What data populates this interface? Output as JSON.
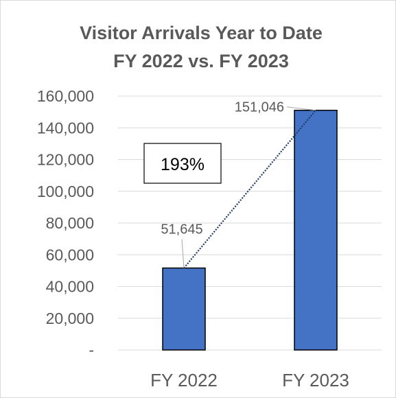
{
  "chart_data": {
    "type": "bar",
    "title": [
      "Visitor Arrivals Year to Date",
      "FY 2022 vs. FY 2023"
    ],
    "categories": [
      "FY 2022",
      "FY 2023"
    ],
    "values": [
      51645,
      151046
    ],
    "data_labels": [
      "51,645",
      "151,046"
    ],
    "y_ticks": [
      "-",
      "20,000",
      "40,000",
      "60,000",
      "80,000",
      "100,000",
      "120,000",
      "140,000",
      "160,000"
    ],
    "ylim": [
      0,
      160000
    ],
    "grid": true,
    "legend": "none",
    "trendline": "linear, dotted, connecting bar tops",
    "annotation": "193%",
    "colors": {
      "bar": "#4472c4",
      "bar_edge": "#000000",
      "trendline": "#1f3864",
      "grid": "#d9d9d9",
      "text": "#595959"
    }
  }
}
